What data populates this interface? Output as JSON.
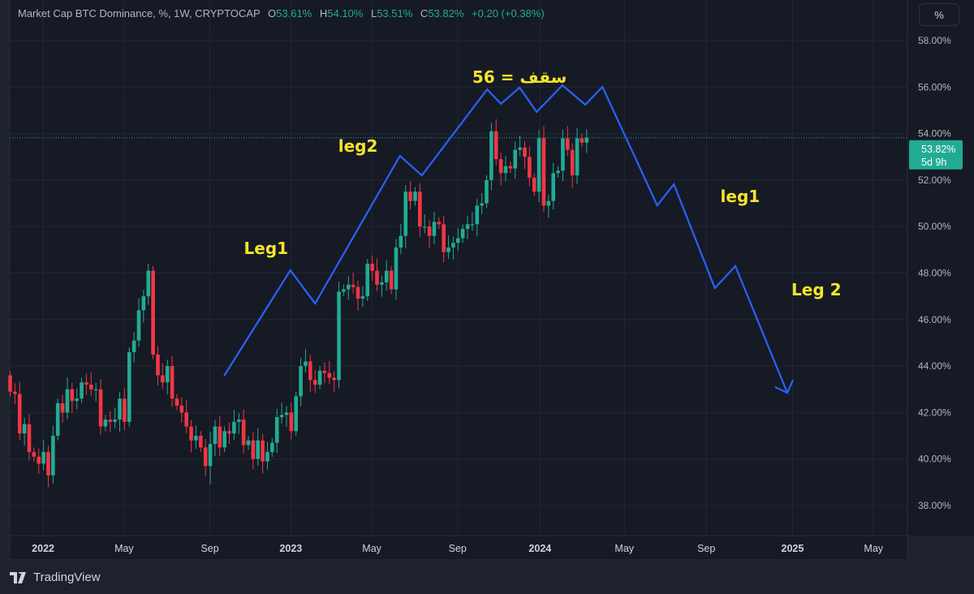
{
  "header": {
    "title": "Market Cap BTC Dominance, %, 1W, CRYPTOCAP",
    "open_label": "O",
    "open": "53.61%",
    "high_label": "H",
    "high": "54.10%",
    "low_label": "L",
    "low": "53.51%",
    "close_label": "C",
    "close": "53.82%",
    "change": "+0.20 (+0.38%)"
  },
  "scale_button": "%",
  "price_label": {
    "value": "53.82%",
    "countdown": "5d 9h"
  },
  "footer": {
    "brand": "TradingView"
  },
  "colors": {
    "up": "#22ab94",
    "down": "#f23645",
    "drawing": "#2962ff",
    "annotation": "#f5e42a",
    "background": "#161a25"
  },
  "chart_data": {
    "type": "candlestick",
    "interval": "1W",
    "x_unit": "weeks (index of candle)",
    "closes": [
      42.9,
      42.8,
      41.1,
      41.5,
      40.3,
      40.1,
      39.8,
      40.3,
      39.3,
      41.0,
      42.4,
      42.0,
      43.0,
      42.5,
      42.6,
      43.3,
      43.2,
      43.0,
      43.0,
      41.4,
      41.7,
      41.6,
      41.7,
      42.6,
      41.6,
      44.6,
      45.1,
      46.4,
      47.0,
      48.1,
      44.5,
      43.6,
      43.3,
      44.0,
      42.6,
      42.3,
      42.0,
      41.4,
      40.8,
      41.0,
      40.5,
      39.7,
      40.65,
      41.4,
      40.5,
      41.2,
      41.1,
      41.6,
      41.7,
      40.6,
      40.8,
      40.0,
      40.8,
      39.9,
      40.3,
      40.7,
      41.8,
      41.9,
      42.0,
      41.2,
      42.7,
      44.0,
      44.2,
      43.4,
      43.2,
      43.8,
      43.7,
      43.5,
      43.4,
      47.2,
      47.3,
      47.5,
      47.4,
      46.9,
      47.0,
      48.4,
      48.1,
      47.5,
      47.6,
      48.1,
      47.3,
      49.1,
      49.6,
      51.5,
      51.1,
      51.5,
      50.0,
      50.0,
      49.6,
      50.2,
      50.1,
      48.9,
      49.1,
      49.3,
      49.5,
      49.9,
      50.1,
      50.1,
      50.9,
      51.0,
      52.0,
      54.1,
      52.9,
      52.3,
      52.6,
      52.5,
      53.3,
      53.4,
      53.0,
      52.1,
      51.5,
      53.8,
      50.9,
      51.1,
      52.3,
      52.4,
      53.8,
      53.3,
      52.2,
      53.8,
      53.61,
      53.82
    ],
    "first_open": 43.6,
    "notable_extremes": {
      "high": 48.4,
      "low": 38.9
    },
    "last_price": 53.82,
    "ylim": [
      37,
      59.75
    ],
    "y_ticks": [
      38,
      40,
      42,
      44,
      46,
      48,
      50,
      52,
      54,
      56,
      58
    ],
    "y_tick_labels": [
      "38.00%",
      "40.00%",
      "42.00%",
      "44.00%",
      "46.00%",
      "48.00%",
      "50.00%",
      "52.00%",
      "54.00%",
      "56.00%",
      "58.00%"
    ],
    "x_ticks": [
      {
        "week": 7,
        "label": "2022",
        "bold": true
      },
      {
        "week": 24,
        "label": "May"
      },
      {
        "week": 42,
        "label": "Sep"
      },
      {
        "week": 59,
        "label": "2023",
        "bold": true
      },
      {
        "week": 76,
        "label": "May"
      },
      {
        "week": 94,
        "label": "Sep"
      },
      {
        "week": 111.3,
        "label": "2024",
        "bold": true
      },
      {
        "week": 129,
        "label": "May"
      },
      {
        "week": 146.2,
        "label": "Sep"
      },
      {
        "week": 164.3,
        "label": "2025",
        "bold": true
      },
      {
        "week": 181.3,
        "label": "May"
      }
    ],
    "drawing_path": [
      [
        45.0,
        43.58
      ],
      [
        58.9,
        48.12
      ],
      [
        64.1,
        46.69
      ],
      [
        81.9,
        53.04
      ],
      [
        86.5,
        52.2
      ],
      [
        100.2,
        55.9
      ],
      [
        103.1,
        55.28
      ],
      [
        107.0,
        55.98
      ],
      [
        110.6,
        54.93
      ],
      [
        116.0,
        56.08
      ],
      [
        120.8,
        55.24
      ],
      [
        124.4,
        56.01
      ],
      [
        135.9,
        50.91
      ],
      [
        139.4,
        51.82
      ],
      [
        148.0,
        47.35
      ],
      [
        152.3,
        48.3
      ],
      [
        163.2,
        42.85
      ]
    ],
    "arrow_barbs": [
      [
        160.6,
        43.1
      ],
      [
        164.4,
        43.41
      ]
    ],
    "annotations": [
      {
        "text": "Leg1",
        "week": 53.8,
        "value": 49.07
      },
      {
        "text": "leg2",
        "week": 73.1,
        "value": 53.46
      },
      {
        "text": "56 = سقف",
        "week": 107,
        "value": 56.43
      },
      {
        "text": "leg1",
        "week": 153.3,
        "value": 51.3
      },
      {
        "text": "Leg 2",
        "week": 169.3,
        "value": 47.28
      }
    ]
  }
}
